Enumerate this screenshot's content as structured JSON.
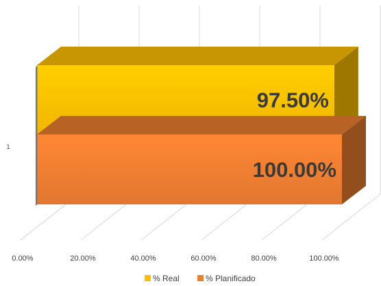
{
  "chart_data": {
    "type": "bar",
    "orientation": "horizontal",
    "style": "3d",
    "categories": [
      "1"
    ],
    "series": [
      {
        "name": "% Real",
        "values": [
          97.5
        ],
        "color": "#FFC000",
        "data_label": "97.50%"
      },
      {
        "name": "% Planificado",
        "values": [
          100.0
        ],
        "color": "#ED7D31",
        "data_label": "100.00%"
      }
    ],
    "xlim": [
      0,
      100
    ],
    "x_ticks": [
      "0.00%",
      "20.00%",
      "40.00%",
      "60.00%",
      "80.00%",
      "100.00%"
    ],
    "grid": true,
    "legend": "bottom"
  }
}
